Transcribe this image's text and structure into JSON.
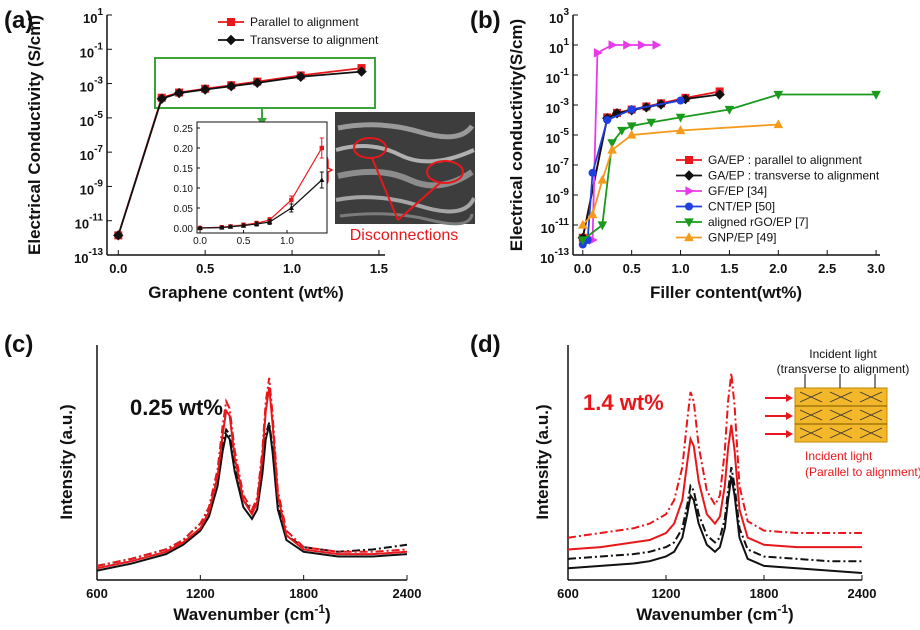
{
  "chart_data": [
    {
      "type": "line",
      "panel_label": "(a)",
      "y_label": "Electrical Conductivity (S/cm)",
      "x_label": "Graphene content (wt%)",
      "log_y": true,
      "legend": "upper center",
      "xlim": [
        -0.065,
        1.535
      ],
      "ylim": [
        1e-13,
        10
      ],
      "xticks": [
        {
          "value": 0,
          "label": "0.0"
        },
        {
          "value": 0.5,
          "label": "0.5"
        },
        {
          "value": 1,
          "label": "1.0"
        },
        {
          "value": 1.5,
          "label": "1.5"
        }
      ],
      "yticks": [
        {
          "value": 1e-13,
          "label": "10",
          "exponent": "-13"
        },
        {
          "value": 1e-11,
          "label": "10",
          "exponent": "-11"
        },
        {
          "value": 1e-09,
          "label": "10",
          "exponent": "-9"
        },
        {
          "value": 1e-07,
          "label": "10",
          "exponent": "-7"
        },
        {
          "value": 1e-05,
          "label": "10",
          "exponent": "-5"
        },
        {
          "value": 0.001,
          "label": "10",
          "exponent": "-3"
        },
        {
          "value": 0.1,
          "label": "10",
          "exponent": "-1"
        },
        {
          "value": 10,
          "label": "10",
          "exponent": "1"
        }
      ],
      "series": [
        {
          "name": "Parallel to alignment",
          "color": "#e8171b",
          "marker": "square",
          "x": [
            0,
            0.25,
            0.35,
            0.5,
            0.65,
            0.8,
            1.05,
            1.4
          ],
          "values": [
            1.4e-12,
            0.00015,
            0.0003,
            0.0005,
            0.0008,
            0.0013,
            0.003,
            0.008
          ]
        },
        {
          "name": "Transverse to alignment",
          "color": "#111111",
          "marker": "diamond",
          "x": [
            0,
            0.25,
            0.35,
            0.5,
            0.65,
            0.8,
            1.05,
            1.4
          ],
          "values": [
            1.4e-12,
            0.00013,
            0.00028,
            0.00045,
            0.0007,
            0.0011,
            0.0025,
            0.005
          ]
        }
      ],
      "inset": {
        "type": "line",
        "xlim": [
          -0.035,
          1.46
        ],
        "ylim": [
          -0.0125,
          0.265
        ],
        "xticks": [
          {
            "value": 0,
            "label": "0.0"
          },
          {
            "value": 0.5,
            "label": "0.5"
          },
          {
            "value": 1,
            "label": "1.0"
          }
        ],
        "yticks": [
          {
            "value": 0,
            "label": "0.00"
          },
          {
            "value": 0.05,
            "label": "0.05"
          },
          {
            "value": 0.1,
            "label": "0.10"
          },
          {
            "value": 0.15,
            "label": "0.15"
          },
          {
            "value": 0.2,
            "label": "0.20"
          },
          {
            "value": 0.25,
            "label": "0.25"
          }
        ],
        "series": [
          {
            "color": "#e8171b",
            "marker": "square",
            "x": [
              0,
              0.25,
              0.35,
              0.5,
              0.65,
              0.8,
              1.05,
              1.4
            ],
            "values": [
              0,
              0.002,
              0.004,
              0.008,
              0.012,
              0.02,
              0.07,
              0.2
            ],
            "errors": [
              0.002,
              0.003,
              0.003,
              0.004,
              0.005,
              0.006,
              0.01,
              0.025
            ]
          },
          {
            "color": "#111111",
            "marker": "triangle-up",
            "x": [
              0,
              0.25,
              0.35,
              0.5,
              0.65,
              0.8,
              1.05,
              1.4
            ],
            "values": [
              0,
              0.001,
              0.003,
              0.006,
              0.01,
              0.015,
              0.05,
              0.12
            ],
            "errors": [
              0.002,
              0.003,
              0.003,
              0.004,
              0.005,
              0.006,
              0.01,
              0.02
            ]
          }
        ]
      },
      "image_annotation": "Disconnections"
    },
    {
      "type": "line",
      "panel_label": "(b)",
      "y_label": "Electrical conductivity(S/cm)",
      "x_label": "Filler content(wt%)",
      "log_y": true,
      "legend": "lower right",
      "xlim": [
        -0.1,
        3.04
      ],
      "ylim": [
        1e-13,
        1000
      ],
      "xticks": [
        {
          "value": 0,
          "label": "0.0"
        },
        {
          "value": 0.5,
          "label": "0.5"
        },
        {
          "value": 1,
          "label": "1.0"
        },
        {
          "value": 1.5,
          "label": "1.5"
        },
        {
          "value": 2,
          "label": "2.0"
        },
        {
          "value": 2.5,
          "label": "2.5"
        },
        {
          "value": 3,
          "label": "3.0"
        }
      ],
      "yticks": [
        {
          "value": 1e-13,
          "label": "10",
          "exponent": "-13"
        },
        {
          "value": 1e-11,
          "label": "10",
          "exponent": "-11"
        },
        {
          "value": 1e-09,
          "label": "10",
          "exponent": "-9"
        },
        {
          "value": 1e-07,
          "label": "10",
          "exponent": "-7"
        },
        {
          "value": 1e-05,
          "label": "10",
          "exponent": "-5"
        },
        {
          "value": 0.001,
          "label": "10",
          "exponent": "-3"
        },
        {
          "value": 0.1,
          "label": "10",
          "exponent": "-1"
        },
        {
          "value": 10,
          "label": "10",
          "exponent": "1"
        },
        {
          "value": 1000,
          "label": "10",
          "exponent": "3"
        }
      ],
      "series": [
        {
          "name": "GA/EP : parallel to alignment",
          "color": "#e8171b",
          "marker": "square",
          "x": [
            0,
            0.25,
            0.35,
            0.5,
            0.65,
            0.8,
            1.05,
            1.4
          ],
          "values": [
            1.4e-12,
            0.00015,
            0.0003,
            0.0005,
            0.0008,
            0.0013,
            0.003,
            0.008
          ]
        },
        {
          "name": "GA/EP : transverse to alignment",
          "color": "#111111",
          "marker": "diamond",
          "x": [
            0,
            0.25,
            0.35,
            0.5,
            0.65,
            0.8,
            1.05,
            1.4
          ],
          "values": [
            1.4e-12,
            0.00013,
            0.00028,
            0.00045,
            0.0007,
            0.0011,
            0.0025,
            0.005
          ]
        },
        {
          "name": "GF/EP [34]",
          "color": "#e83be8",
          "marker": "triangle-right",
          "x": [
            0.1,
            0.15,
            0.3,
            0.45,
            0.6,
            0.75
          ],
          "values": [
            1e-12,
            3,
            10,
            10,
            10,
            10
          ]
        },
        {
          "name": "CNT/EP [50]",
          "color": "#1f3fe0",
          "marker": "circle",
          "x": [
            0,
            0.05,
            0.1,
            0.25,
            0.5,
            1
          ],
          "values": [
            5e-13,
            1e-12,
            3e-08,
            0.0001,
            0.0005,
            0.002
          ]
        },
        {
          "name": "aligned rGO/EP [7]",
          "color": "#1a9a1a",
          "marker": "triangle-down",
          "x": [
            0,
            0.2,
            0.3,
            0.4,
            0.5,
            0.7,
            1,
            1.5,
            2,
            3
          ],
          "values": [
            1e-12,
            1e-11,
            3e-06,
            2e-05,
            4e-05,
            7e-05,
            0.00015,
            0.0005,
            0.005,
            0.005
          ]
        },
        {
          "name": "GNP/EP [49]",
          "color": "#f59a1a",
          "marker": "triangle-up",
          "x": [
            0,
            0.1,
            0.2,
            0.3,
            0.5,
            1,
            2
          ],
          "values": [
            1e-11,
            5e-11,
            1e-08,
            1e-06,
            1e-05,
            2e-05,
            5e-05
          ]
        }
      ]
    },
    {
      "type": "spectrum",
      "panel_label": "(c)",
      "y_label": "Intensity (a.u.)",
      "x_label": "Wavenumber (cm",
      "x_label_sup": "-1",
      "x_label_end": ")",
      "annotation": "0.25 wt%",
      "xlim": [
        600,
        2400
      ],
      "ylim": [
        0,
        100
      ],
      "xticks": [
        600,
        1200,
        1800,
        2400
      ],
      "x": [
        600,
        800,
        1000,
        1100,
        1200,
        1250,
        1300,
        1330,
        1350,
        1370,
        1400,
        1450,
        1500,
        1530,
        1560,
        1580,
        1600,
        1620,
        1650,
        1700,
        1800,
        2000,
        2200,
        2400
      ],
      "series": [
        {
          "color": "#111111",
          "dash": "solid",
          "values": [
            4,
            7,
            11,
            15,
            21,
            27,
            40,
            55,
            62,
            60,
            46,
            31,
            26,
            30,
            45,
            60,
            66,
            54,
            30,
            17,
            12,
            10,
            10,
            11
          ]
        },
        {
          "color": "#111111",
          "dash": "dashdot",
          "values": [
            6,
            9,
            13,
            17,
            24,
            30,
            44,
            58,
            64,
            62,
            49,
            34,
            29,
            33,
            48,
            62,
            67,
            56,
            32,
            19,
            14,
            12,
            13,
            15
          ]
        },
        {
          "color": "#e8171b",
          "dash": "solid",
          "values": [
            5,
            8,
            12,
            16,
            22,
            29,
            44,
            62,
            72,
            70,
            52,
            34,
            28,
            33,
            52,
            72,
            82,
            66,
            36,
            19,
            13,
            11,
            11,
            12
          ]
        },
        {
          "color": "#e8171b",
          "dash": "dashdot",
          "values": [
            6,
            9,
            13,
            17,
            24,
            31,
            47,
            66,
            76,
            73,
            55,
            36,
            30,
            35,
            55,
            76,
            86,
            70,
            38,
            21,
            14,
            12,
            12,
            13
          ]
        }
      ]
    },
    {
      "type": "spectrum",
      "panel_label": "(d)",
      "y_label": "Intensity (a.u.)",
      "x_label": "Wavenumber (cm",
      "x_label_sup": "-1",
      "x_label_end": ")",
      "annotation": "1.4 wt%",
      "diagram_labels": [
        "Incident light",
        "(transverse to alignment)",
        "Incident light",
        "(Parallel to alignment)"
      ],
      "xlim": [
        600,
        2400
      ],
      "ylim": [
        0,
        100
      ],
      "xticks": [
        600,
        1200,
        1800,
        2400
      ],
      "x": [
        600,
        800,
        1000,
        1100,
        1200,
        1250,
        1300,
        1330,
        1350,
        1370,
        1400,
        1450,
        1500,
        1530,
        1560,
        1580,
        1600,
        1620,
        1650,
        1700,
        1800,
        2000,
        2200,
        2400
      ],
      "series": [
        {
          "color": "#111111",
          "dash": "solid",
          "values": [
            5,
            6,
            7,
            8,
            10,
            12,
            18,
            28,
            36,
            34,
            24,
            15,
            12,
            14,
            22,
            34,
            44,
            36,
            18,
            9,
            6,
            5,
            4,
            3
          ]
        },
        {
          "color": "#111111",
          "dash": "dashdot",
          "values": [
            9,
            10,
            11,
            12,
            14,
            16,
            22,
            32,
            40,
            38,
            28,
            19,
            16,
            18,
            26,
            38,
            48,
            40,
            22,
            13,
            10,
            9,
            8,
            8
          ]
        },
        {
          "color": "#e8171b",
          "dash": "solid",
          "values": [
            13,
            14,
            16,
            17,
            20,
            24,
            34,
            50,
            60,
            57,
            42,
            28,
            24,
            27,
            40,
            56,
            66,
            55,
            30,
            18,
            15,
            14,
            14,
            14
          ]
        },
        {
          "color": "#e8171b",
          "dash": "dashdot",
          "values": [
            18,
            20,
            22,
            24,
            28,
            34,
            48,
            68,
            80,
            76,
            57,
            38,
            32,
            36,
            55,
            76,
            88,
            74,
            40,
            25,
            21,
            20,
            20,
            20
          ]
        }
      ]
    }
  ]
}
